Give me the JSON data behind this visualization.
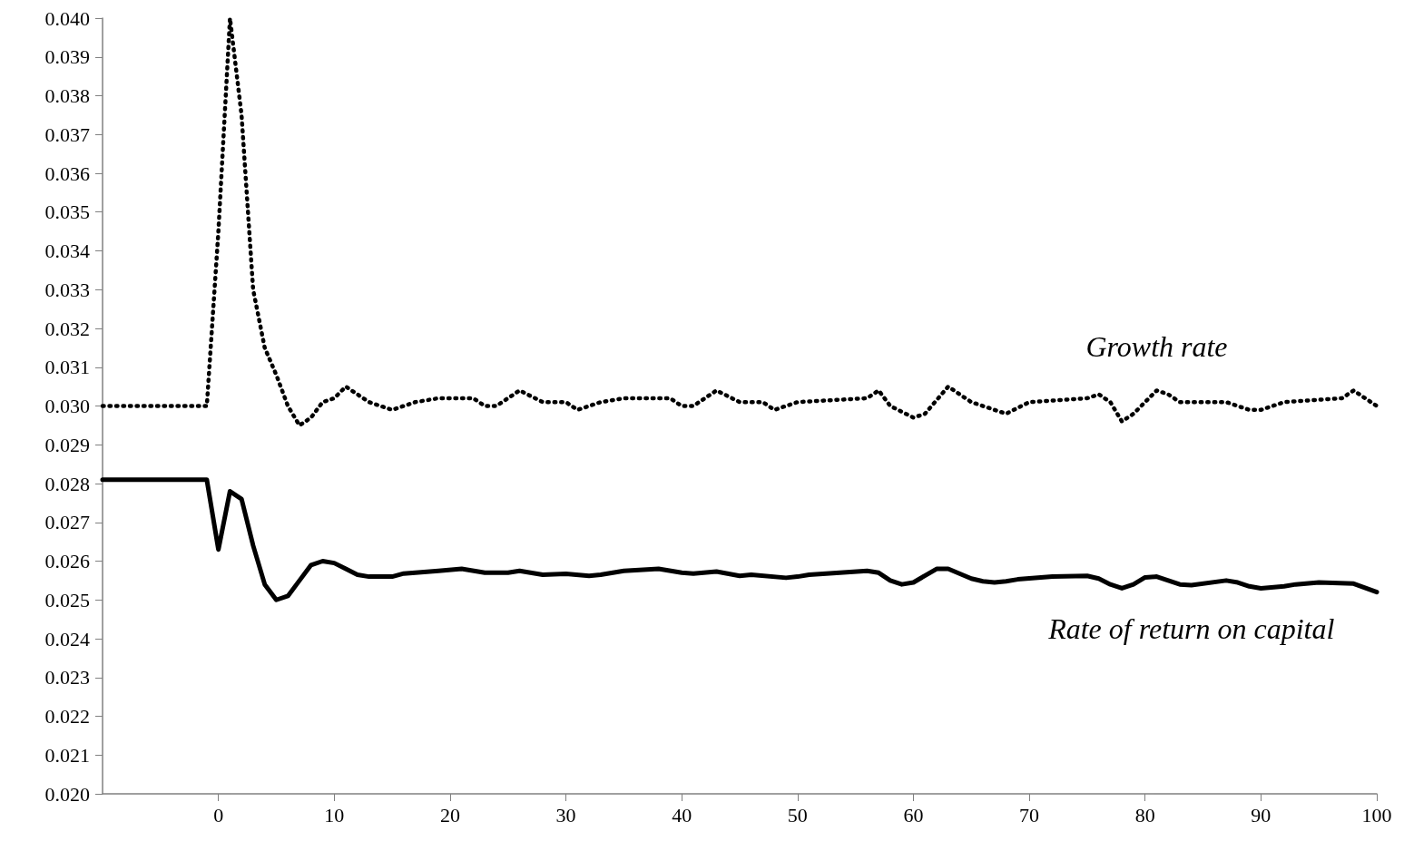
{
  "chart_data": {
    "type": "line",
    "xlim": [
      -10,
      100
    ],
    "xticks": [
      0,
      10,
      20,
      30,
      40,
      50,
      60,
      70,
      80,
      90,
      100
    ],
    "ylim": [
      0.02,
      0.04
    ],
    "yticks": [
      {
        "value": 0.02,
        "label": "0.020"
      },
      {
        "value": 0.021,
        "label": "0.021"
      },
      {
        "value": 0.022,
        "label": "0.022"
      },
      {
        "value": 0.023,
        "label": "0.023"
      },
      {
        "value": 0.024,
        "label": "0.024"
      },
      {
        "value": 0.025,
        "label": "0.025"
      },
      {
        "value": 0.026,
        "label": "0.026"
      },
      {
        "value": 0.027,
        "label": "0.027"
      },
      {
        "value": 0.028,
        "label": "0.028"
      },
      {
        "value": 0.029,
        "label": "0.029"
      },
      {
        "value": 0.03,
        "label": "0.030"
      },
      {
        "value": 0.031,
        "label": "0.031"
      },
      {
        "value": 0.032,
        "label": "0.032"
      },
      {
        "value": 0.033,
        "label": "0.033"
      },
      {
        "value": 0.034,
        "label": "0.034"
      },
      {
        "value": 0.035,
        "label": "0.035"
      },
      {
        "value": 0.036,
        "label": "0.036"
      },
      {
        "value": 0.037,
        "label": "0.037"
      },
      {
        "value": 0.038,
        "label": "0.038"
      },
      {
        "value": 0.039,
        "label": "0.039"
      },
      {
        "value": 0.04,
        "label": "0.040"
      }
    ],
    "grid": false,
    "legend": false,
    "marker": "none",
    "series": [
      {
        "name": "Growth rate",
        "color": "#000000",
        "line_style": "dotted",
        "x": [
          -10,
          -1,
          0,
          1,
          2,
          3,
          4,
          5,
          6,
          7,
          8,
          9,
          10,
          11,
          12,
          13,
          15,
          17,
          19,
          22,
          23,
          24,
          26,
          28,
          30,
          31,
          33,
          35,
          39,
          40,
          41,
          43,
          45,
          47,
          48,
          50,
          56,
          57,
          58,
          60,
          61,
          63,
          65,
          67,
          68,
          70,
          75,
          76,
          77,
          78,
          79,
          81,
          82,
          83,
          87,
          89,
          90,
          92,
          97,
          98,
          100
        ],
        "values": [
          0.03,
          0.03,
          0.0345,
          0.04,
          0.0375,
          0.033,
          0.0315,
          0.0308,
          0.03,
          0.0295,
          0.0297,
          0.0301,
          0.0302,
          0.0305,
          0.0303,
          0.0301,
          0.0299,
          0.0301,
          0.0302,
          0.0302,
          0.03,
          0.03,
          0.0304,
          0.0301,
          0.0301,
          0.0299,
          0.0301,
          0.0302,
          0.0302,
          0.03,
          0.03,
          0.0304,
          0.0301,
          0.0301,
          0.0299,
          0.0301,
          0.0302,
          0.0304,
          0.03,
          0.0297,
          0.0298,
          0.0305,
          0.0301,
          0.0299,
          0.0298,
          0.0301,
          0.0302,
          0.0303,
          0.0301,
          0.0296,
          0.0298,
          0.0304,
          0.0303,
          0.0301,
          0.0301,
          0.0299,
          0.0299,
          0.0301,
          0.0302,
          0.0304,
          0.03
        ]
      },
      {
        "name": "Rate of return on capital",
        "color": "#000000",
        "line_style": "solid",
        "x": [
          -10,
          -1,
          0,
          1,
          2,
          3,
          4,
          5,
          6,
          7,
          8,
          9,
          10,
          11,
          12,
          13,
          15,
          16,
          19,
          21,
          23,
          25,
          26,
          28,
          30,
          32,
          33,
          35,
          38,
          40,
          41,
          43,
          45,
          46,
          49,
          50,
          51,
          56,
          57,
          58,
          59,
          60,
          62,
          63,
          65,
          66,
          67,
          68,
          69,
          72,
          75,
          76,
          77,
          78,
          79,
          80,
          81,
          83,
          84,
          87,
          88,
          89,
          90,
          92,
          93,
          95,
          98,
          100
        ],
        "values": [
          0.0281,
          0.0281,
          0.0263,
          0.0278,
          0.0276,
          0.0264,
          0.0254,
          0.025,
          0.0251,
          0.0255,
          0.0259,
          0.026,
          0.02595,
          0.0258,
          0.02565,
          0.0256,
          0.0256,
          0.02568,
          0.02575,
          0.0258,
          0.0257,
          0.0257,
          0.02575,
          0.02565,
          0.02567,
          0.02562,
          0.02565,
          0.02575,
          0.0258,
          0.0257,
          0.02568,
          0.02573,
          0.02562,
          0.02565,
          0.02557,
          0.0256,
          0.02565,
          0.02575,
          0.0257,
          0.0255,
          0.0254,
          0.02545,
          0.0258,
          0.0258,
          0.02555,
          0.02548,
          0.02545,
          0.02548,
          0.02553,
          0.0256,
          0.02562,
          0.02555,
          0.0254,
          0.0253,
          0.0254,
          0.02558,
          0.0256,
          0.0254,
          0.02538,
          0.0255,
          0.02545,
          0.02535,
          0.0253,
          0.02535,
          0.0254,
          0.02545,
          0.02542,
          0.0252
        ]
      }
    ]
  }
}
